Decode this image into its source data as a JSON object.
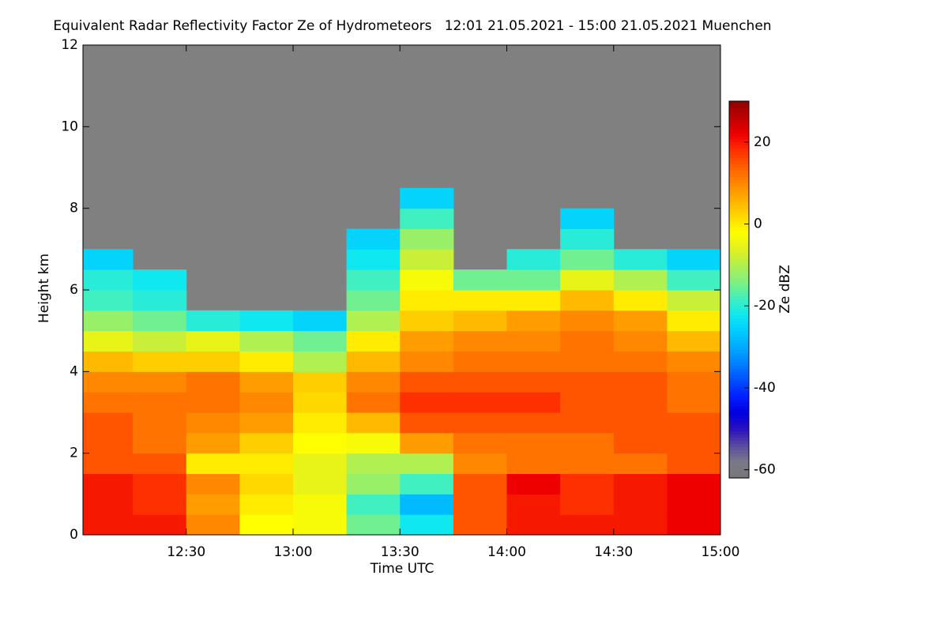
{
  "chart_data": {
    "type": "heatmap",
    "title": "Equivalent Radar Reflectivity Factor Ze of Hydrometeors   12:01 21.05.2021 - 15:00 21.05.2021 Muenchen",
    "x_label": "Time UTC",
    "y_label": "Height km",
    "z_label": "Ze dBZ",
    "xbins": [
      12.0167,
      12.25,
      12.5,
      12.75,
      13,
      13.25,
      13.5,
      13.75,
      14,
      14.25,
      14.5,
      14.75,
      15
    ],
    "ybins": [
      0,
      0.5,
      1,
      1.5,
      2,
      2.5,
      3,
      3.5,
      4,
      4.5,
      5,
      5.5,
      6,
      6.5,
      7,
      7.5,
      8,
      8.5,
      9
    ],
    "z": [
      [
        20,
        20,
        20,
        15,
        15,
        15,
        12,
        10,
        5,
        -5,
        -12,
        -18,
        -20,
        -25,
        null,
        null,
        null,
        null
      ],
      [
        20,
        18,
        18,
        15,
        12,
        12,
        12,
        10,
        3,
        -8,
        -15,
        -20,
        -22,
        null,
        null,
        null,
        null,
        null
      ],
      [
        10,
        8,
        10,
        0,
        8,
        10,
        12,
        12,
        3,
        -5,
        -20,
        null,
        null,
        null,
        null,
        null,
        null,
        null
      ],
      [
        -2,
        0,
        2,
        0,
        3,
        8,
        10,
        8,
        0,
        -10,
        -22,
        null,
        null,
        null,
        null,
        null,
        null,
        null
      ],
      [
        -3,
        -3,
        -5,
        -5,
        -2,
        0,
        2,
        3,
        -10,
        -15,
        -25,
        null,
        null,
        null,
        null,
        null,
        null,
        null
      ],
      [
        -15,
        -18,
        -12,
        -10,
        -3,
        5,
        12,
        10,
        5,
        0,
        -10,
        -15,
        -18,
        -22,
        -25,
        null,
        null,
        null
      ],
      [
        -22,
        -28,
        -18,
        -10,
        8,
        15,
        18,
        15,
        10,
        8,
        3,
        0,
        -3,
        -8,
        -12,
        -18,
        -25,
        null
      ],
      [
        15,
        15,
        15,
        10,
        12,
        15,
        18,
        15,
        12,
        10,
        5,
        0,
        -15,
        null,
        null,
        null,
        null,
        null
      ],
      [
        20,
        20,
        22,
        12,
        12,
        15,
        18,
        15,
        12,
        10,
        8,
        0,
        -15,
        -20,
        null,
        null,
        null,
        null
      ],
      [
        20,
        18,
        18,
        12,
        12,
        15,
        15,
        15,
        12,
        12,
        10,
        5,
        -5,
        -15,
        -20,
        -25,
        null,
        null
      ],
      [
        20,
        20,
        20,
        12,
        15,
        15,
        15,
        15,
        12,
        10,
        8,
        0,
        -10,
        -20,
        null,
        null,
        null,
        null
      ],
      [
        22,
        22,
        22,
        15,
        15,
        15,
        12,
        12,
        10,
        5,
        0,
        -8,
        -18,
        -25,
        null,
        null,
        null,
        null
      ]
    ],
    "xlim": [
      12.0167,
      15
    ],
    "xticks": [
      {
        "value": 12.5,
        "label": "12:30"
      },
      {
        "value": 13,
        "label": "13:00"
      },
      {
        "value": 13.5,
        "label": "13:30"
      },
      {
        "value": 14,
        "label": "14:00"
      },
      {
        "value": 14.5,
        "label": "14:30"
      },
      {
        "value": 15,
        "label": "15:00"
      }
    ],
    "ylim": [
      0,
      12
    ],
    "yticks": [
      0,
      2,
      4,
      6,
      8,
      10,
      12
    ],
    "zlim": [
      -62,
      30
    ],
    "zticks": [
      -60,
      -40,
      -20,
      0,
      20
    ],
    "nan_color": "#808080",
    "colormap": [
      "#777777",
      "#7a7a8a",
      "#5a4aa0",
      "#2a10c0",
      "#0000e0",
      "#0020ff",
      "#0050ff",
      "#0080ff",
      "#00aaff",
      "#00ccff",
      "#10e8f0",
      "#40f0c0",
      "#80f080",
      "#b0f050",
      "#e0f020",
      "#ffff00",
      "#ffd800",
      "#ffb000",
      "#ff8800",
      "#ff6000",
      "#ff3000",
      "#ee0000",
      "#c00000",
      "#900000"
    ]
  }
}
